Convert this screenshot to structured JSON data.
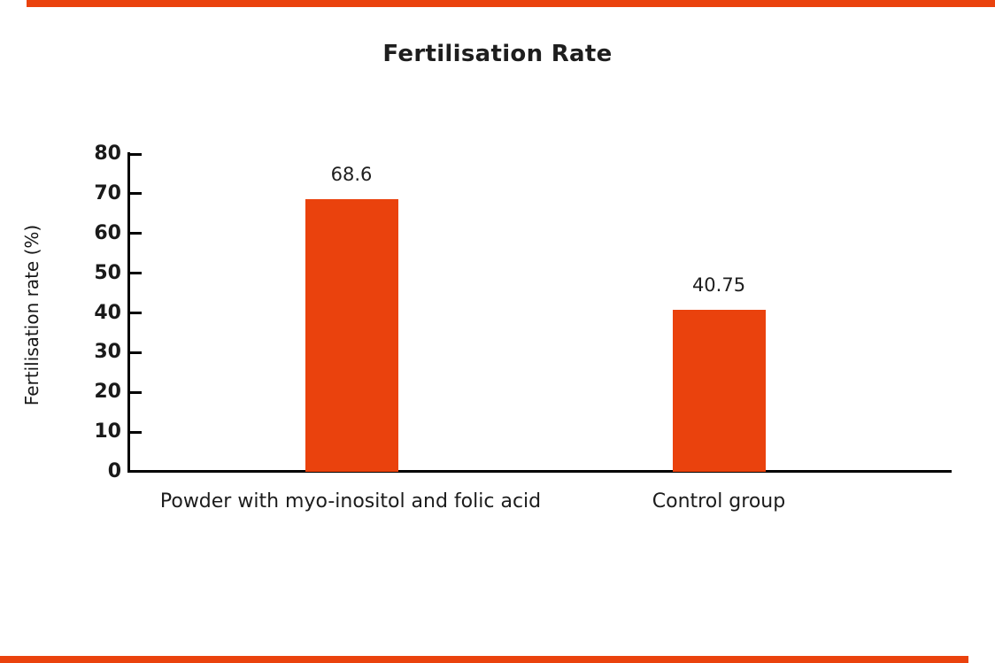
{
  "page": {
    "background": "#ffffff"
  },
  "decorations": {
    "top_strip_color": "#EA420D",
    "bottom_strip_color": "#EA420D"
  },
  "chart_data": {
    "type": "bar",
    "title": "Fertilisation Rate",
    "ylabel": "Fertilisation rate (%)",
    "xlabel": "",
    "categories": [
      "Powder with myo-inositol and folic acid",
      "Control group"
    ],
    "values": [
      68.6,
      40.75
    ],
    "value_labels": [
      "68.6",
      "40.75"
    ],
    "y_ticks": [
      0,
      10,
      20,
      30,
      40,
      50,
      60,
      70,
      80
    ],
    "ylim": [
      0,
      80
    ],
    "bar_color": "#EA420D",
    "axis_color": "#000000",
    "text_color": "#1E1E1E",
    "grid": false,
    "legend": "none"
  }
}
